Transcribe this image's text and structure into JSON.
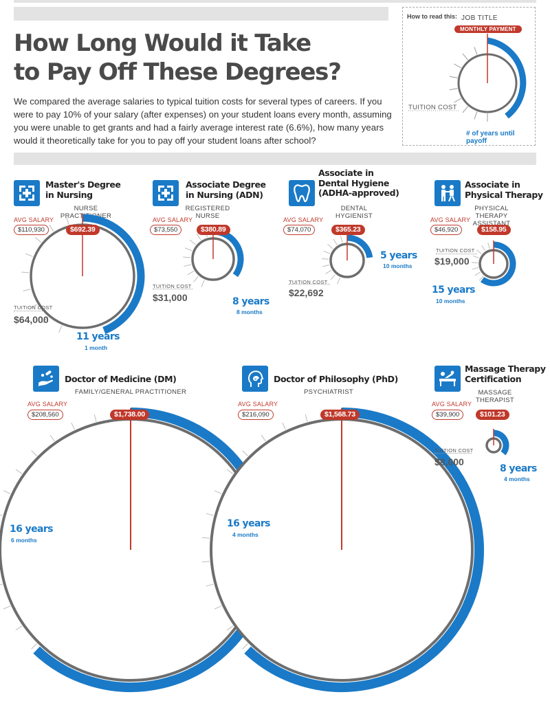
{
  "title_line1": "How Long Would it Take",
  "title_line2": "to Pay Off These Degrees?",
  "intro": "We compared the average salaries to typical tuition costs for several types of careers. If you were to pay 10% of your salary (after expenses) on your student loans every month, assuming you were unable to get grants and had a fairly average interest rate (6.6%), how many years would it theoretically take for you to pay off your student loans after school?",
  "legend": {
    "how_to_read": "How to read this:",
    "job_title": "JOB TITLE",
    "monthly_payment": "MONTHLY PAYMENT",
    "tuition_cost": "TUITION COST",
    "years_until_payoff": "# of years until payoff"
  },
  "colors": {
    "accent_blue": "#1a7ac7",
    "accent_red": "#c0392b",
    "ring_gray": "#6d6d6d"
  },
  "avg_salary_label": "AVG SALARY",
  "tuition_cost_label": "TUITION COST",
  "degrees": [
    {
      "icon": "hospital-icon",
      "name_lines": [
        "Master's Degree",
        "in Nursing"
      ],
      "job_lines": [
        "NURSE",
        "PRACTITIONER"
      ],
      "avg_salary": "$110,930",
      "monthly_payment": "$692.39",
      "tuition_cost": "$64,000",
      "years": "11 years",
      "months": "1 month",
      "payoff_fraction": 0.44
    },
    {
      "icon": "hospital-icon",
      "name_lines": [
        "Associate Degree",
        "in Nursing (ADN)"
      ],
      "job_lines": [
        "REGISTERED",
        "NURSE"
      ],
      "avg_salary": "$73,550",
      "monthly_payment": "$380.89",
      "tuition_cost": "$31,000",
      "years": "8 years",
      "months": "8 months",
      "payoff_fraction": 0.35
    },
    {
      "icon": "tooth-icon",
      "name_lines": [
        "Associate in",
        "Dental Hygiene",
        "(ADHA-approved)"
      ],
      "job_lines": [
        "DENTAL",
        "HYGIENIST"
      ],
      "avg_salary": "$74,070",
      "monthly_payment": "$365.23",
      "tuition_cost": "$22,692",
      "years": "5 years",
      "months": "10 months",
      "payoff_fraction": 0.23
    },
    {
      "icon": "physical-therapy-icon",
      "name_lines": [
        "Associate in",
        "Physical Therapy"
      ],
      "job_lines": [
        "PHYSICAL THERAPY",
        "ASSISTANT"
      ],
      "avg_salary": "$46,920",
      "monthly_payment": "$158.95",
      "tuition_cost": "$19,000",
      "years": "15 years",
      "months": "10 months",
      "payoff_fraction": 0.6
    },
    {
      "icon": "medicine-hand-icon",
      "name_lines": [
        "Doctor of Medicine (DM)"
      ],
      "job_lines": [
        "FAMILY/GENERAL PRACTITIONER"
      ],
      "avg_salary": "$208,560",
      "monthly_payment": "$1,738.00",
      "tuition_cost": "",
      "years": "16 years",
      "months": "6 months",
      "payoff_fraction": 0.62
    },
    {
      "icon": "head-brain-icon",
      "name_lines": [
        "Doctor of Philosophy (PhD)"
      ],
      "job_lines": [
        "PSYCHIATRIST"
      ],
      "avg_salary": "$216,090",
      "monthly_payment": "$1,568.73",
      "tuition_cost": "",
      "years": "16 years",
      "months": "4 months",
      "payoff_fraction": 0.62
    },
    {
      "icon": "massage-icon",
      "name_lines": [
        "Massage Therapy",
        "Certification"
      ],
      "job_lines": [
        "MASSAGE",
        "THERAPIST"
      ],
      "avg_salary": "$39,900",
      "monthly_payment": "$101.23",
      "tuition_cost": "$8,000",
      "years": "8 years",
      "months": "4 months",
      "payoff_fraction": 0.36
    }
  ]
}
